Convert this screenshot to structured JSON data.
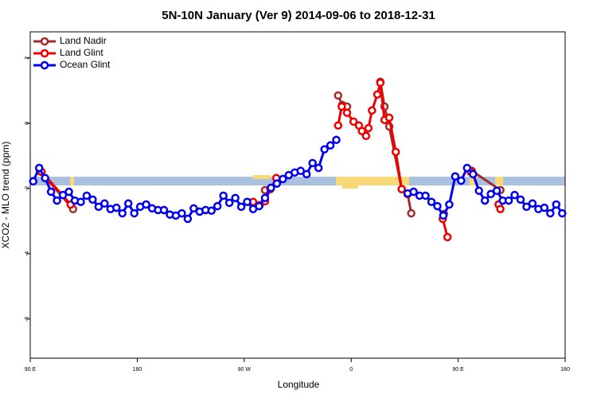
{
  "chart_data": {
    "type": "line",
    "title": "5N-10N January (Ver 9)   2014-09-06 to 2018-12-31",
    "x_label": "Longitude",
    "y_label": "XCO2 - MLO trend (ppm)",
    "xlim": [
      90,
      540
    ],
    "ylim": [
      -7.2,
      2.8
    ],
    "xticks": [
      {
        "value": 90,
        "label": "90 E"
      },
      180,
      {
        "value": 270,
        "label": "90 W"
      },
      {
        "value": 360,
        "label": "0"
      },
      {
        "value": 450,
        "label": "90 E"
      },
      {
        "value": 540,
        "label": "180"
      }
    ],
    "yticks": [
      2,
      0,
      -2,
      -4,
      -6
    ],
    "legend": "top-left",
    "series": [
      {
        "name": "Land Nadir",
        "color": "#a52a2a",
        "x": [
          98,
          126,
          200,
          287.5,
          300,
          349,
          352.5,
          356.5,
          370,
          384.5,
          388,
          392,
          402.5,
          407.5,
          410.5,
          420,
          438,
          450,
          461.5,
          485.5
        ],
        "values": [
          -1.46,
          -2.63,
          null,
          -2.05,
          null,
          0.85,
          0.56,
          0.51,
          null,
          1.27,
          0.51,
          -0.1,
          -2.02,
          -2.17,
          -2.76,
          null,
          -2.78,
          null,
          -1.46,
          -2.05
        ]
      },
      {
        "name": "Land Glint",
        "color": "#ee0000",
        "x": [
          99.5,
          124,
          200,
          277.5,
          283,
          287.5,
          292,
          297,
          320,
          349,
          352,
          356.5,
          362,
          366.5,
          369,
          372.5,
          374.5,
          377.5,
          382,
          384.5,
          388,
          392,
          397.5,
          402.5,
          407.5,
          420,
          437,
          441,
          450,
          460.5,
          470,
          484,
          485.5
        ],
        "values": [
          -1.49,
          -2.49,
          null,
          -2.41,
          -2.51,
          -2.39,
          -2.02,
          -1.68,
          null,
          -0.07,
          0.51,
          0.32,
          0.05,
          -0.07,
          -0.24,
          -0.39,
          -0.15,
          0.39,
          0.88,
          1.24,
          0.1,
          0.17,
          -0.88,
          -2.02,
          -2.17,
          null,
          -2.93,
          -3.49,
          null,
          -1.49,
          null,
          -2.49,
          -2.63
        ]
      },
      {
        "name": "Ocean Glint",
        "color": "#0000ee",
        "x": [
          92.5,
          97.5,
          102.5,
          107.5,
          112.5,
          117.5,
          122.5,
          127.5,
          132.5,
          137.5,
          142.5,
          147.5,
          152.5,
          157.5,
          162.5,
          167.5,
          172.5,
          177.5,
          182.5,
          187.5,
          192.5,
          197.5,
          202.5,
          207.5,
          212.5,
          217.5,
          222.5,
          227.5,
          232.5,
          237.5,
          242.5,
          247.5,
          252.5,
          257.5,
          262.5,
          267.5,
          272.5,
          277.5,
          282.5,
          287.5,
          292.5,
          297.5,
          302.5,
          307.5,
          312.5,
          317.5,
          322.5,
          327.5,
          332.5,
          337.5,
          342.5,
          347.5,
          377.5,
          407.5,
          412.5,
          417.5,
          422.5,
          427.5,
          432.5,
          437.5,
          442.5,
          447.5,
          452.5,
          457.5,
          462.5,
          467.5,
          472.5,
          477.5,
          482.5,
          487.5,
          492.5,
          497.5,
          502.5,
          507.5,
          512.5,
          517.5,
          522.5,
          527.5,
          532.5,
          537.5
        ],
        "values": [
          -1.78,
          -1.37,
          -1.68,
          -2.1,
          -2.37,
          -2.2,
          -2.1,
          -2.37,
          -2.41,
          -2.22,
          -2.34,
          -2.56,
          -2.46,
          -2.63,
          -2.59,
          -2.76,
          -2.46,
          -2.76,
          -2.56,
          -2.49,
          -2.61,
          -2.66,
          -2.66,
          -2.8,
          -2.83,
          -2.76,
          -2.93,
          -2.61,
          -2.71,
          -2.66,
          -2.68,
          -2.54,
          -2.22,
          -2.44,
          -2.29,
          -2.56,
          -2.41,
          -2.63,
          -2.54,
          -2.29,
          -1.98,
          -1.85,
          -1.71,
          -1.59,
          -1.51,
          -1.46,
          -1.56,
          -1.22,
          -1.37,
          -0.8,
          -0.68,
          -0.51,
          null,
          -2.15,
          -2.1,
          -2.22,
          -2.22,
          -2.41,
          -2.54,
          -2.83,
          -2.49,
          -1.63,
          -1.76,
          -1.37,
          -1.56,
          -2.07,
          -2.37,
          -2.17,
          -2.07,
          -2.37,
          -2.37,
          -2.2,
          -2.34,
          -2.56,
          -2.46,
          -2.63,
          -2.59,
          -2.76,
          -2.49,
          -2.76
        ]
      }
    ]
  }
}
